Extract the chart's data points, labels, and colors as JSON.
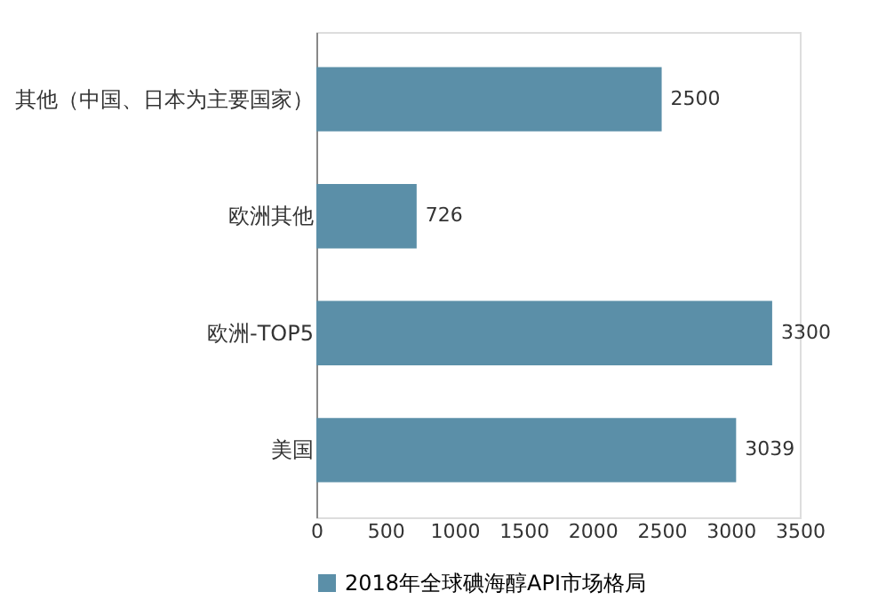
{
  "chart_data": {
    "type": "bar",
    "orientation": "horizontal",
    "categories": [
      "其他（中国、日本为主要国家）",
      "欧洲其他",
      "欧洲-TOP5",
      "美国"
    ],
    "series": [
      {
        "name": "2018年全球碘海醇API市场格局",
        "color": "#5b8fa8",
        "values": [
          2500,
          726,
          3300,
          3039
        ]
      }
    ],
    "xlim": [
      0,
      3500
    ],
    "xticks": [
      0,
      500,
      1000,
      1500,
      2000,
      2500,
      3000,
      3500
    ],
    "data_labels": true,
    "legend": "bottom",
    "grid": false
  }
}
